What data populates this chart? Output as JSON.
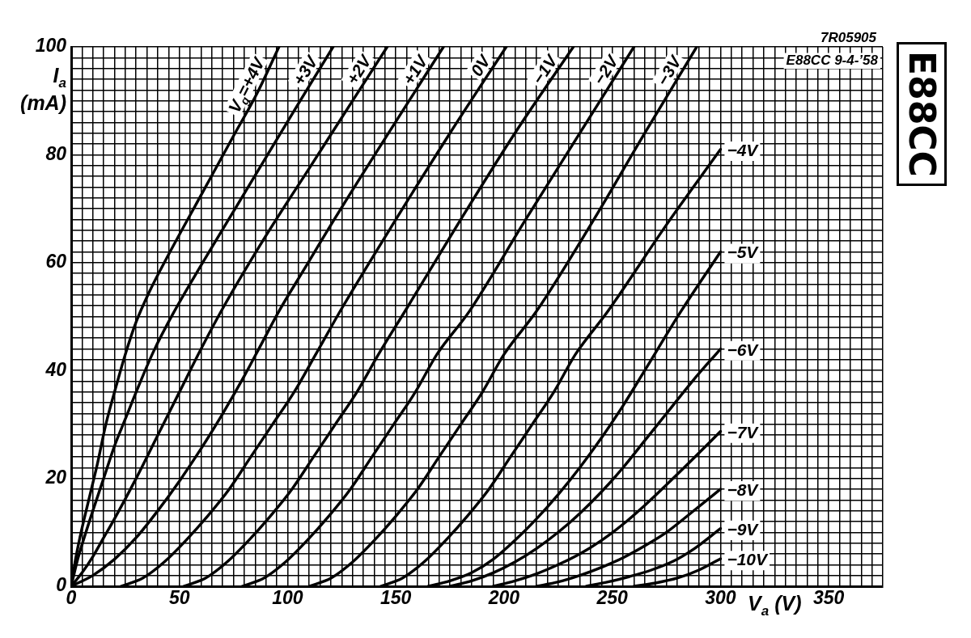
{
  "chart_data": {
    "type": "line",
    "title": "E88CC",
    "xlabel": "V$_{a}$ (V)",
    "ylabel": "I$_{a}$ (mA)",
    "annotations": [
      "7R05905",
      "E88CC 9-4-’58"
    ],
    "xlim": [
      0,
      375
    ],
    "ylim": [
      0,
      100
    ],
    "xticks": [
      0,
      {
        "value": 5,
        "label": null
      },
      {
        "value": 10,
        "label": null
      },
      {
        "value": 15,
        "label": null
      },
      {
        "value": 20,
        "label": null
      },
      {
        "value": 25,
        "label": null
      },
      {
        "value": 30,
        "label": null
      },
      {
        "value": 35,
        "label": null
      },
      {
        "value": 40,
        "label": null
      },
      {
        "value": 45,
        "label": null
      },
      50,
      {
        "value": 55,
        "label": null
      },
      {
        "value": 60,
        "label": null
      },
      {
        "value": 65,
        "label": null
      },
      {
        "value": 70,
        "label": null
      },
      {
        "value": 75,
        "label": null
      },
      {
        "value": 80,
        "label": null
      },
      {
        "value": 85,
        "label": null
      },
      {
        "value": 90,
        "label": null
      },
      {
        "value": 95,
        "label": null
      },
      100,
      {
        "value": 105,
        "label": null
      },
      {
        "value": 110,
        "label": null
      },
      {
        "value": 115,
        "label": null
      },
      {
        "value": 120,
        "label": null
      },
      {
        "value": 125,
        "label": null
      },
      {
        "value": 130,
        "label": null
      },
      {
        "value": 135,
        "label": null
      },
      {
        "value": 140,
        "label": null
      },
      {
        "value": 145,
        "label": null
      },
      150,
      {
        "value": 155,
        "label": null
      },
      {
        "value": 160,
        "label": null
      },
      {
        "value": 165,
        "label": null
      },
      {
        "value": 170,
        "label": null
      },
      {
        "value": 175,
        "label": null
      },
      {
        "value": 180,
        "label": null
      },
      {
        "value": 185,
        "label": null
      },
      {
        "value": 190,
        "label": null
      },
      {
        "value": 195,
        "label": null
      },
      200,
      {
        "value": 205,
        "label": null
      },
      {
        "value": 210,
        "label": null
      },
      {
        "value": 215,
        "label": null
      },
      {
        "value": 220,
        "label": null
      },
      {
        "value": 225,
        "label": null
      },
      {
        "value": 230,
        "label": null
      },
      {
        "value": 235,
        "label": null
      },
      {
        "value": 240,
        "label": null
      },
      {
        "value": 245,
        "label": null
      },
      250,
      {
        "value": 255,
        "label": null
      },
      {
        "value": 260,
        "label": null
      },
      {
        "value": 265,
        "label": null
      },
      {
        "value": 270,
        "label": null
      },
      {
        "value": 275,
        "label": null
      },
      {
        "value": 280,
        "label": null
      },
      {
        "value": 285,
        "label": null
      },
      {
        "value": 290,
        "label": null
      },
      {
        "value": 295,
        "label": null
      },
      300,
      {
        "value": 305,
        "label": null
      },
      {
        "value": 310,
        "label": null
      },
      {
        "value": 315,
        "label": null
      },
      {
        "value": 320,
        "label": null
      },
      {
        "value": 325,
        "label": null
      },
      {
        "value": 330,
        "label": null
      },
      {
        "value": 335,
        "label": null
      },
      {
        "value": 340,
        "label": null
      },
      {
        "value": 345,
        "label": null
      },
      350,
      {
        "value": 355,
        "label": null
      },
      {
        "value": 360,
        "label": null
      },
      {
        "value": 365,
        "label": null
      },
      {
        "value": 370,
        "label": null
      },
      {
        "value": 375,
        "label": null
      }
    ],
    "yticks": [
      0,
      {
        "value": 2,
        "label": null
      },
      {
        "value": 4,
        "label": null
      },
      {
        "value": 6,
        "label": null
      },
      {
        "value": 8,
        "label": null
      },
      {
        "value": 10,
        "label": null
      },
      {
        "value": 12,
        "label": null
      },
      {
        "value": 14,
        "label": null
      },
      {
        "value": 16,
        "label": null
      },
      {
        "value": 18,
        "label": null
      },
      20,
      {
        "value": 22,
        "label": null
      },
      {
        "value": 24,
        "label": null
      },
      {
        "value": 26,
        "label": null
      },
      {
        "value": 28,
        "label": null
      },
      {
        "value": 30,
        "label": null
      },
      {
        "value": 32,
        "label": null
      },
      {
        "value": 34,
        "label": null
      },
      {
        "value": 36,
        "label": null
      },
      {
        "value": 38,
        "label": null
      },
      40,
      {
        "value": 42,
        "label": null
      },
      {
        "value": 44,
        "label": null
      },
      {
        "value": 46,
        "label": null
      },
      {
        "value": 48,
        "label": null
      },
      {
        "value": 50,
        "label": null
      },
      {
        "value": 52,
        "label": null
      },
      {
        "value": 54,
        "label": null
      },
      {
        "value": 56,
        "label": null
      },
      {
        "value": 58,
        "label": null
      },
      60,
      {
        "value": 62,
        "label": null
      },
      {
        "value": 64,
        "label": null
      },
      {
        "value": 66,
        "label": null
      },
      {
        "value": 68,
        "label": null
      },
      {
        "value": 70,
        "label": null
      },
      {
        "value": 72,
        "label": null
      },
      {
        "value": 74,
        "label": null
      },
      {
        "value": 76,
        "label": null
      },
      {
        "value": 78,
        "label": null
      },
      80,
      {
        "value": 82,
        "label": null
      },
      {
        "value": 84,
        "label": null
      },
      {
        "value": 86,
        "label": null
      },
      {
        "value": 88,
        "label": null
      },
      {
        "value": 90,
        "label": null
      },
      {
        "value": 92,
        "label": null
      },
      {
        "value": 94,
        "label": null
      },
      {
        "value": 96,
        "label": null
      },
      {
        "value": 98,
        "label": null
      },
      100
    ],
    "grid": true,
    "legend": false,
    "marker": "none",
    "line_style": "solid",
    "series": [
      {
        "name": "V$_{g}$=+4V",
        "color": "#000000",
        "x": [
          0,
          2,
          4,
          6,
          9,
          12,
          16,
          20,
          25,
          30,
          36,
          45,
          60,
          75,
          86,
          96
        ],
        "values": [
          0,
          5,
          9,
          12.5,
          17.5,
          22.5,
          30,
          36,
          43,
          49,
          54.5,
          61.5,
          72.5,
          83.5,
          91.5,
          100
        ]
      },
      {
        "name": "+3V",
        "color": "#000000",
        "x": [
          0,
          3,
          6,
          10,
          15,
          20,
          25,
          30,
          38,
          47,
          60,
          75,
          90,
          105,
          121
        ],
        "values": [
          0,
          5,
          9,
          14,
          20,
          26,
          31,
          36,
          43.5,
          50.5,
          59.5,
          69.5,
          79.5,
          89.5,
          100
        ]
      },
      {
        "name": "+2V",
        "color": "#000000",
        "x": [
          0,
          5,
          10,
          15,
          20,
          30,
          40,
          50,
          60,
          70,
          90,
          110,
          130,
          146
        ],
        "values": [
          0,
          2.5,
          5.5,
          9,
          12.5,
          20,
          28,
          36,
          44,
          51.5,
          65,
          77.5,
          90,
          100
        ]
      },
      {
        "name": "+1V",
        "color": "#000000",
        "x": [
          0,
          10,
          20,
          30,
          40,
          50,
          60,
          70,
          80,
          88,
          96,
          108,
          120,
          145,
          172
        ],
        "values": [
          0,
          2,
          5,
          9,
          14,
          19.5,
          25.5,
          32,
          39,
          45,
          51,
          59,
          67,
          83,
          100
        ]
      },
      {
        "name": "0V",
        "color": "#000000",
        "x": [
          23,
          33,
          43,
          53,
          63,
          73,
          83,
          93,
          103,
          113,
          125,
          150,
          175,
          201
        ],
        "values": [
          0,
          1.5,
          4.5,
          8.5,
          13,
          18,
          24,
          30,
          36,
          43,
          51.5,
          68,
          84,
          100
        ]
      },
      {
        "name": "−1V",
        "color": "#000000",
        "x": [
          52,
          62,
          72,
          82,
          92,
          102,
          112,
          122,
          132,
          142,
          155,
          180,
          205,
          232
        ],
        "values": [
          0,
          1.5,
          4.5,
          8.5,
          13,
          18,
          24,
          30,
          36,
          43,
          51.5,
          68,
          84,
          100
        ]
      },
      {
        "name": "−2V",
        "color": "#000000",
        "x": [
          79,
          89,
          99,
          109,
          119,
          129,
          139,
          149,
          159,
          169,
          184,
          210,
          235,
          260
        ],
        "values": [
          0,
          1.5,
          4.5,
          8.5,
          13,
          18,
          24,
          30,
          36,
          43,
          51,
          68,
          84,
          100
        ]
      },
      {
        "name": "−3V",
        "color": "#000000",
        "x": [
          110,
          120,
          130,
          140,
          150,
          160,
          170,
          180,
          190,
          200,
          215,
          240,
          265,
          289
        ],
        "values": [
          0,
          1.5,
          4.5,
          8.5,
          13,
          18,
          24,
          30,
          36,
          43,
          51,
          67,
          84,
          100
        ]
      },
      {
        "name": "−4V",
        "color": "#000000",
        "x": [
          143,
          153,
          163,
          173,
          183,
          193,
          203,
          213,
          223,
          233,
          248,
          275,
          300
        ],
        "values": [
          0,
          1.5,
          4.5,
          8.5,
          13,
          18,
          24,
          30,
          36,
          43,
          51,
          67,
          81
        ]
      },
      {
        "name": "−5V",
        "color": "#000000",
        "x": [
          165,
          175,
          185,
          195,
          205,
          215,
          225,
          235,
          245,
          255,
          265,
          281,
          300
        ],
        "values": [
          0,
          1,
          2.5,
          5,
          8.5,
          12.5,
          17,
          22,
          27.5,
          33.5,
          40,
          50.5,
          62
        ]
      },
      {
        "name": "−6V",
        "color": "#000000",
        "x": [
          175,
          185,
          195,
          205,
          215,
          225,
          235,
          245,
          255,
          265,
          275,
          287,
          300
        ],
        "values": [
          0,
          1,
          2.5,
          4.5,
          7,
          10,
          13.5,
          17.5,
          22,
          27,
          32,
          38,
          44
        ]
      },
      {
        "name": "−7V",
        "color": "#000000",
        "x": [
          195,
          205,
          215,
          225,
          235,
          245,
          255,
          265,
          275,
          287,
          300
        ],
        "values": [
          0,
          1,
          2.3,
          4,
          6,
          8.5,
          11.5,
          15,
          18.8,
          23.5,
          28.7
        ]
      },
      {
        "name": "−8V",
        "color": "#000000",
        "x": [
          215,
          225,
          235,
          245,
          255,
          265,
          275,
          287,
          300
        ],
        "values": [
          0,
          0.8,
          2,
          3.5,
          5.3,
          7.5,
          10,
          13.8,
          18
        ]
      },
      {
        "name": "−9V",
        "color": "#000000",
        "x": [
          238,
          248,
          258,
          268,
          278,
          288,
          300
        ],
        "values": [
          0,
          0.8,
          1.8,
          3,
          4.6,
          7,
          10.7
        ]
      },
      {
        "name": "−10V",
        "color": "#000000",
        "x": [
          260,
          270,
          280,
          290,
          300
        ],
        "values": [
          0,
          0.6,
          1.5,
          3,
          5.1
        ]
      }
    ]
  }
}
